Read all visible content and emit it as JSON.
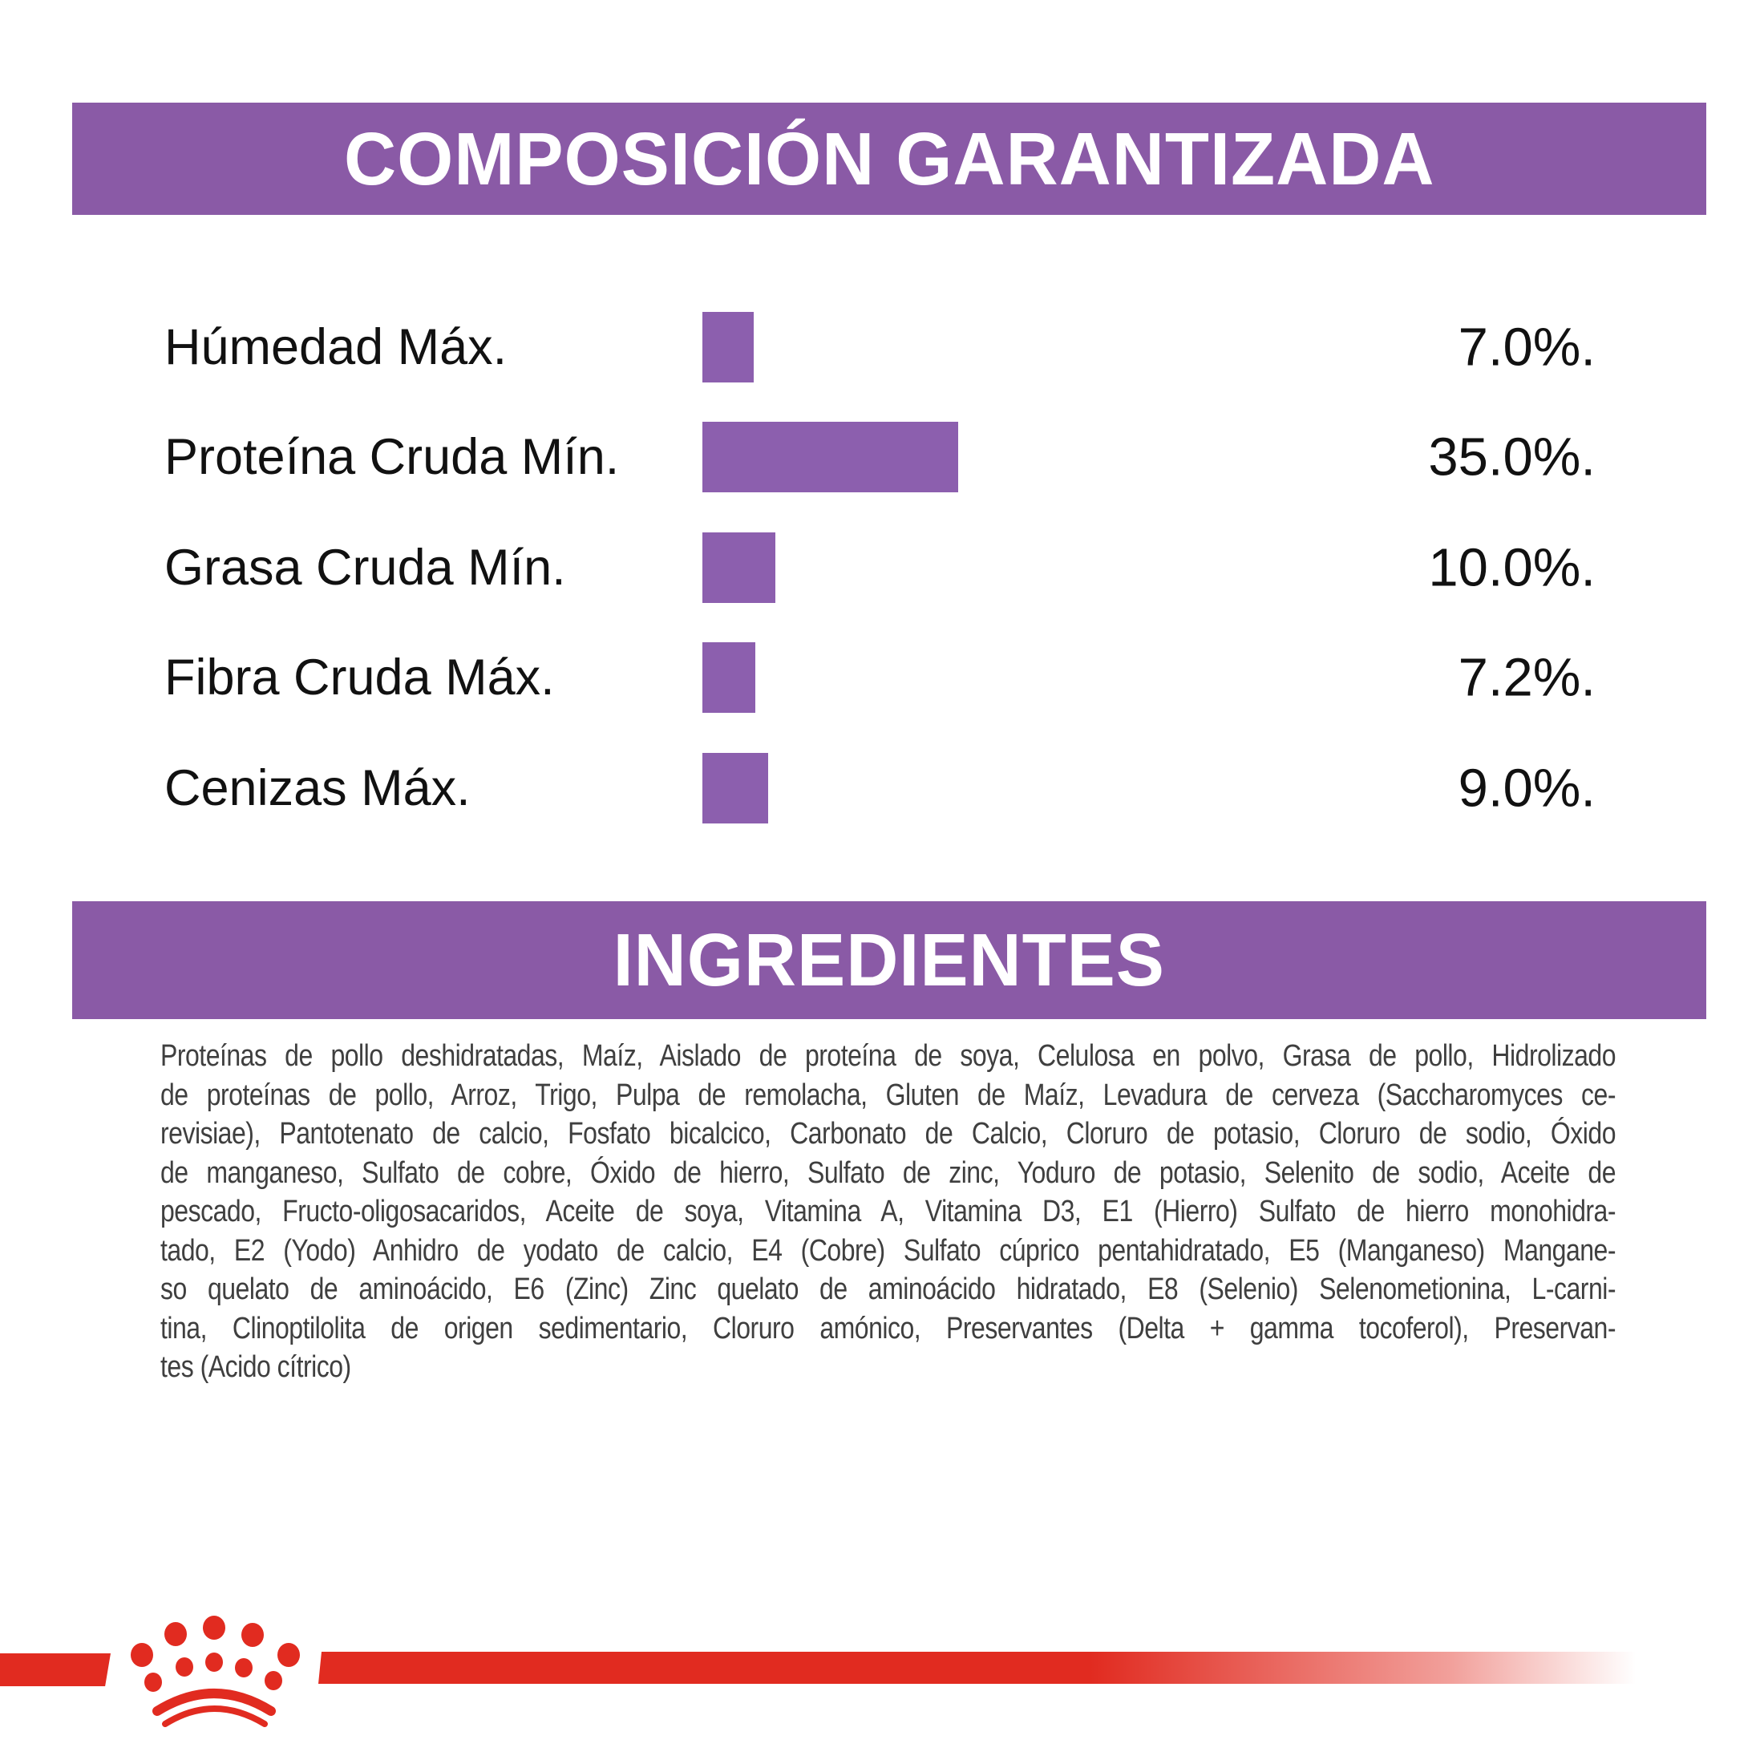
{
  "theme": {
    "header_purple": "#8a5aa6",
    "bar_purple": "#8c5fae",
    "brand_red": "#e12b20",
    "label_black": "#111111",
    "ingredients_gray": "#3f3f3f"
  },
  "section_composicion": {
    "title": "COMPOSICIÓN GARANTIZADA"
  },
  "chart_data": {
    "type": "bar",
    "orientation": "horizontal",
    "title": "COMPOSICIÓN GARANTIZADA",
    "xlabel": "",
    "ylabel": "",
    "xlim": [
      0,
      40
    ],
    "grid": false,
    "legend": "none",
    "bar_color": "#8c5fae",
    "categories": [
      "Húmedad Máx.",
      "Proteína Cruda Mín.",
      "Grasa Cruda Mín.",
      "Fibra Cruda Máx.",
      "Cenizas Máx."
    ],
    "values": [
      7.0,
      35.0,
      10.0,
      7.2,
      9.0
    ],
    "value_labels": [
      "7.0%.",
      "35.0%.",
      "10.0%.",
      "7.2%.",
      "9.0%."
    ],
    "rows": [
      {
        "label": "Húmedad Máx.",
        "value": 7.0,
        "display": "7.0%."
      },
      {
        "label": "Proteína Cruda Mín.",
        "value": 35.0,
        "display": "35.0%."
      },
      {
        "label": "Grasa Cruda Mín.",
        "value": 10.0,
        "display": "10.0%."
      },
      {
        "label": "Fibra Cruda Máx.",
        "value": 7.2,
        "display": "7.2%."
      },
      {
        "label": "Cenizas Máx.",
        "value": 9.0,
        "display": "9.0%."
      }
    ]
  },
  "section_ingredientes": {
    "title": "INGREDIENTES",
    "lines": [
      "Proteínas de pollo deshidratadas, Maíz, Aislado de proteína de soya, Celulosa en polvo, Grasa de pollo, Hidrolizado",
      "de proteínas de pollo, Arroz, Trigo, Pulpa de remolacha, Gluten de Maíz, Levadura de cerveza (Saccharomyces ce-",
      "revisiae), Pantotenato de calcio, Fosfato bicalcico, Carbonato de Calcio, Cloruro de potasio, Cloruro de sodio, Óxido",
      "de manganeso, Sulfato de cobre, Óxido de hierro, Sulfato de zinc, Yoduro de potasio, Selenito de sodio, Aceite de",
      "pescado, Fructo-oligosacaridos, Aceite de soya, Vitamina A, Vitamina D3, E1 (Hierro) Sulfato de hierro monohidra-",
      "tado, E2 (Yodo) Anhidro de yodato de calcio, E4 (Cobre) Sulfato cúprico pentahidratado, E5 (Manganeso) Mangane-",
      "so quelato de aminoácido, E6 (Zinc) Zinc quelato de aminoácido hidratado, E8 (Selenio) Selenometionina, L-carni-",
      "tina, Clinoptilolita de origen sedimentario, Cloruro amónico, Preservantes (Delta + gamma tocoferol), Preservan-",
      "tes (Acido cítrico)"
    ]
  },
  "footer": {
    "logo": "royal-canin-crown",
    "line_color": "#e12b20"
  }
}
